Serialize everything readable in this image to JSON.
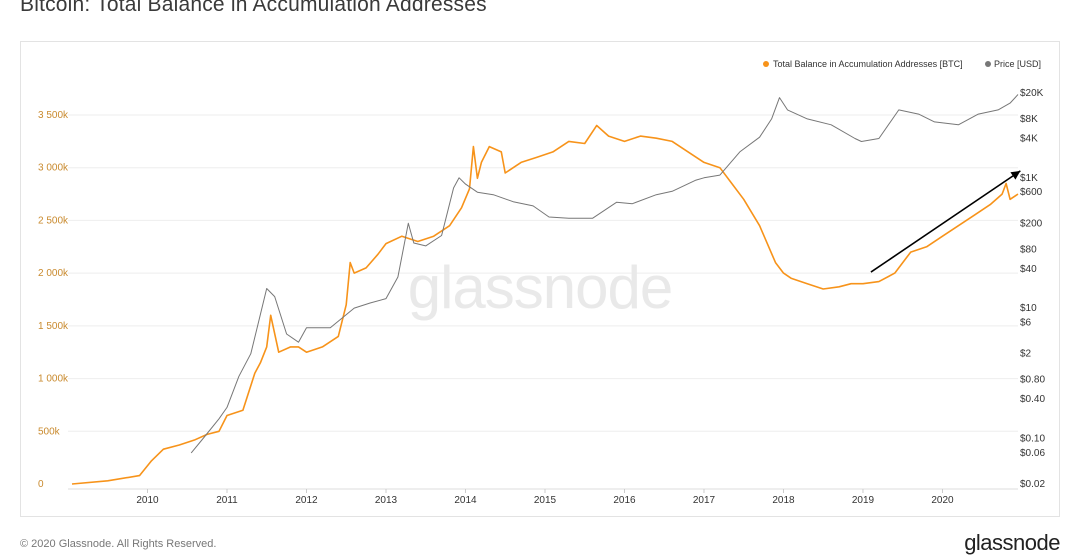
{
  "page": {
    "title": "Bitcoin: Total Balance in Accumulation Addresses",
    "copyright": "© 2020 Glassnode. All Rights Reserved.",
    "brand": "glassnode",
    "watermark": "glassnode"
  },
  "chart_data": {
    "type": "line",
    "title": "Bitcoin: Total Balance in Accumulation Addresses",
    "legend": {
      "placement": "top-right",
      "entries": [
        {
          "label": "Total Balance in Accumulation Addresses [BTC]",
          "color": "#f7931a"
        },
        {
          "label": "Price [USD]",
          "color": "#777777"
        }
      ]
    },
    "x_axis": {
      "ticks": [
        "2010",
        "2011",
        "2012",
        "2013",
        "2014",
        "2015",
        "2016",
        "2017",
        "2018",
        "2019",
        "2020"
      ],
      "range": [
        2009.0,
        2020.95
      ]
    },
    "y_left": {
      "ticks": [
        0,
        500000,
        1000000,
        1500000,
        2000000,
        2500000,
        3000000,
        3500000
      ],
      "tick_labels": [
        "0",
        "500k",
        "1 000k",
        "1 500k",
        "2 000k",
        "2 500k",
        "3 000k",
        "3 500k"
      ],
      "range": [
        0,
        3850000
      ],
      "color": "#f7931a"
    },
    "y_right": {
      "scale": "log",
      "ticks": [
        0.02,
        0.06,
        0.1,
        0.4,
        0.8,
        2,
        6,
        10,
        40,
        80,
        200,
        600,
        1000,
        4000,
        8000,
        20000
      ],
      "tick_labels": [
        "$0.02",
        "$0.06",
        "$0.10",
        "$0.40",
        "$0.80",
        "$2",
        "$6",
        "$10",
        "$40",
        "$80",
        "$200",
        "$600",
        "$1K",
        "$4K",
        "$8K",
        "$20K"
      ],
      "range": [
        0.02,
        20000
      ]
    },
    "grid": "horizontal",
    "series": [
      {
        "name": "Total Balance in Accumulation Addresses [BTC]",
        "axis": "left",
        "color": "#f7931a",
        "x": [
          2009.05,
          2009.5,
          2009.9,
          2010.05,
          2010.2,
          2010.4,
          2010.6,
          2010.75,
          2010.9,
          2011.0,
          2011.2,
          2011.35,
          2011.42,
          2011.5,
          2011.55,
          2011.65,
          2011.8,
          2011.9,
          2012.0,
          2012.2,
          2012.4,
          2012.5,
          2012.55,
          2012.6,
          2012.75,
          2012.9,
          2013.0,
          2013.2,
          2013.4,
          2013.6,
          2013.8,
          2013.95,
          2014.05,
          2014.1,
          2014.15,
          2014.2,
          2014.3,
          2014.45,
          2014.5,
          2014.7,
          2014.9,
          2015.1,
          2015.3,
          2015.5,
          2015.65,
          2015.8,
          2016.0,
          2016.2,
          2016.4,
          2016.6,
          2016.8,
          2017.0,
          2017.2,
          2017.35,
          2017.5,
          2017.7,
          2017.9,
          2018.0,
          2018.1,
          2018.3,
          2018.5,
          2018.7,
          2018.85,
          2019.0,
          2019.2,
          2019.4,
          2019.6,
          2019.8,
          2020.0,
          2020.2,
          2020.4,
          2020.6,
          2020.75,
          2020.8,
          2020.85,
          2020.95
        ],
        "values": [
          0,
          30000,
          80000,
          220000,
          330000,
          370000,
          420000,
          470000,
          500000,
          650000,
          700000,
          1050000,
          1150000,
          1300000,
          1600000,
          1250000,
          1300000,
          1300000,
          1250000,
          1300000,
          1400000,
          1700000,
          2100000,
          2000000,
          2050000,
          2180000,
          2280000,
          2350000,
          2300000,
          2350000,
          2450000,
          2620000,
          2800000,
          3200000,
          2900000,
          3050000,
          3200000,
          3150000,
          2950000,
          3050000,
          3100000,
          3150000,
          3250000,
          3230000,
          3400000,
          3300000,
          3250000,
          3300000,
          3280000,
          3250000,
          3150000,
          3050000,
          3000000,
          2850000,
          2700000,
          2450000,
          2100000,
          2000000,
          1950000,
          1900000,
          1850000,
          1870000,
          1900000,
          1900000,
          1920000,
          2000000,
          2200000,
          2250000,
          2350000,
          2450000,
          2550000,
          2650000,
          2750000,
          2850000,
          2700000,
          2750000
        ]
      },
      {
        "name": "Price [USD]",
        "axis": "right",
        "color": "#777777",
        "x": [
          2010.55,
          2010.7,
          2010.9,
          2011.0,
          2011.15,
          2011.3,
          2011.42,
          2011.5,
          2011.6,
          2011.75,
          2011.9,
          2012.0,
          2012.3,
          2012.6,
          2012.8,
          2013.0,
          2013.15,
          2013.28,
          2013.35,
          2013.5,
          2013.7,
          2013.85,
          2013.92,
          2014.0,
          2014.15,
          2014.35,
          2014.6,
          2014.85,
          2015.05,
          2015.3,
          2015.6,
          2015.9,
          2016.1,
          2016.4,
          2016.6,
          2016.9,
          2017.0,
          2017.2,
          2017.45,
          2017.7,
          2017.85,
          2017.95,
          2018.05,
          2018.3,
          2018.6,
          2018.9,
          2018.98,
          2019.2,
          2019.45,
          2019.7,
          2019.9,
          2020.2,
          2020.45,
          2020.7,
          2020.85,
          2020.95
        ],
        "values": [
          0.06,
          0.1,
          0.2,
          0.3,
          0.9,
          2,
          8,
          20,
          15,
          4,
          3,
          5,
          5,
          10,
          12,
          14,
          30,
          200,
          100,
          90,
          130,
          700,
          1000,
          800,
          600,
          550,
          430,
          370,
          250,
          240,
          240,
          420,
          400,
          550,
          620,
          920,
          1000,
          1100,
          2500,
          4200,
          8000,
          17000,
          11000,
          8000,
          6500,
          4000,
          3600,
          4000,
          11000,
          9500,
          7200,
          6500,
          9500,
          11000,
          14000,
          19000
        ]
      }
    ],
    "annotations": [
      {
        "type": "arrow",
        "from": {
          "x": 2019.1,
          "y": 2010000
        },
        "to": {
          "x": 2020.98,
          "y": 2970000
        }
      }
    ]
  }
}
